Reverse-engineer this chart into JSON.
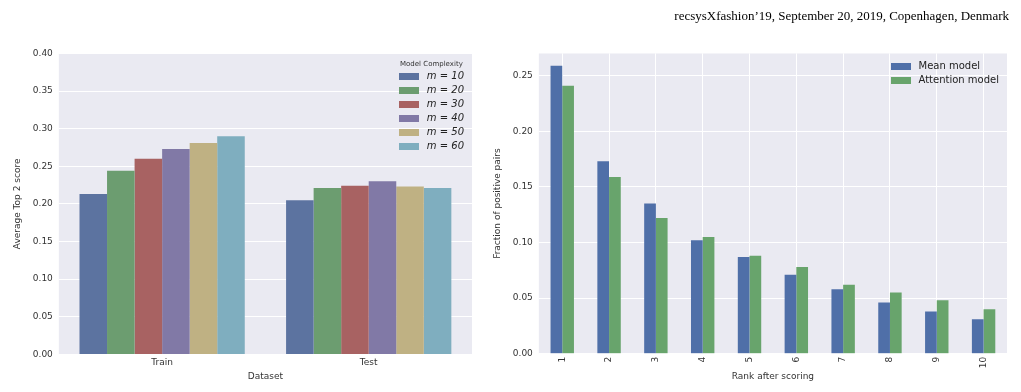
{
  "chart_data": [
    {
      "type": "bar",
      "xlabel": "Dataset",
      "ylabel": "Average Top 2 score",
      "legend_title": "Model Complexity",
      "legend": "top right",
      "grid": "y",
      "categories": [
        "Train",
        "Test"
      ],
      "series": [
        {
          "name": "m = 10",
          "color": "#5c73a0",
          "values": [
            0.213,
            0.205
          ]
        },
        {
          "name": "m = 20",
          "color": "#6c9d70",
          "values": [
            0.244,
            0.221
          ]
        },
        {
          "name": "m = 30",
          "color": "#a86262",
          "values": [
            0.26,
            0.224
          ]
        },
        {
          "name": "m = 40",
          "color": "#8179a6",
          "values": [
            0.273,
            0.23
          ]
        },
        {
          "name": "m = 50",
          "color": "#bfb183",
          "values": [
            0.281,
            0.223
          ]
        },
        {
          "name": "m = 60",
          "color": "#7faebf",
          "values": [
            0.29,
            0.221
          ]
        }
      ],
      "ylim": [
        0,
        0.4
      ],
      "yticks": [
        {
          "value": 0,
          "label": "0.00"
        },
        {
          "value": 0.05,
          "label": "0.05"
        },
        {
          "value": 0.1,
          "label": "0.10"
        },
        {
          "value": 0.15,
          "label": "0.15"
        },
        {
          "value": 0.2,
          "label": "0.20"
        },
        {
          "value": 0.25,
          "label": "0.25"
        },
        {
          "value": 0.3,
          "label": "0.30"
        },
        {
          "value": 0.35,
          "label": "0.35"
        },
        {
          "value": 0.4,
          "label": "0.40"
        }
      ]
    },
    {
      "type": "bar",
      "xlabel": "Rank after scoring",
      "ylabel": "Fraction of positive pairs",
      "legend": "top right",
      "grid": true,
      "annotations": [
        "recsysXfashion’19, September 20, 2019, Copenhagen, Denmark"
      ],
      "categories": [
        "1",
        "2",
        "3",
        "4",
        "5",
        "6",
        "7",
        "8",
        "9",
        "10"
      ],
      "series": [
        {
          "name": "Mean model",
          "color": "#4f6fa8",
          "values": [
            0.259,
            0.173,
            0.135,
            0.102,
            0.087,
            0.071,
            0.058,
            0.046,
            0.038,
            0.031
          ]
        },
        {
          "name": "Attention model",
          "color": "#68a46c",
          "values": [
            0.241,
            0.159,
            0.122,
            0.105,
            0.088,
            0.078,
            0.062,
            0.055,
            0.048,
            0.04
          ]
        }
      ],
      "ylim": [
        0,
        0.27
      ],
      "yticks": [
        {
          "value": 0,
          "label": "0.00"
        },
        {
          "value": 0.05,
          "label": "0.05"
        },
        {
          "value": 0.1,
          "label": "0.10"
        },
        {
          "value": 0.15,
          "label": "0.15"
        },
        {
          "value": 0.2,
          "label": "0.20"
        },
        {
          "value": 0.25,
          "label": "0.25"
        }
      ]
    }
  ]
}
